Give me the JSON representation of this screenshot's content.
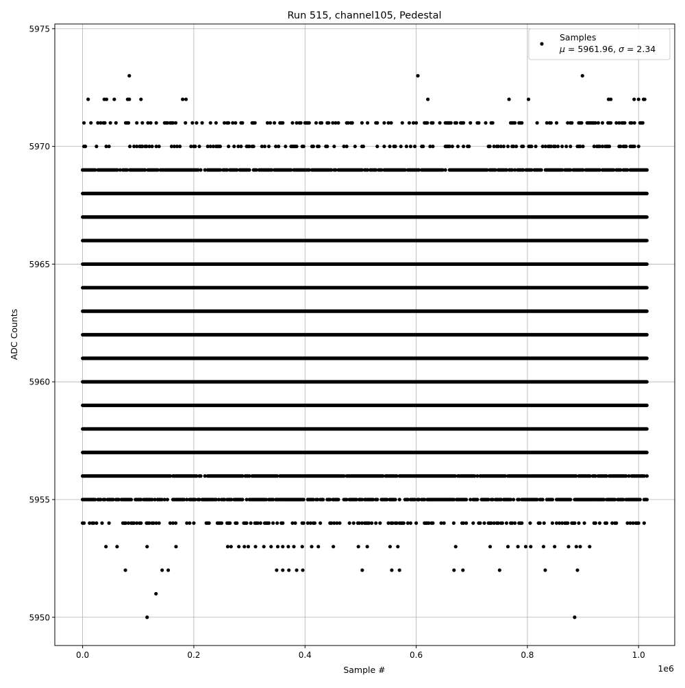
{
  "chart_data": {
    "type": "scatter",
    "title": "Run 515, channel105, Pedestal",
    "xlabel": "Sample #",
    "ylabel": "ADC Counts",
    "x_offset_label": "1e6",
    "xlim": [
      -0.05,
      1.065
    ],
    "ylim": [
      5948.8,
      5975.2
    ],
    "x_unit_scale": 1000000,
    "xticks": [
      0.0,
      0.2,
      0.4,
      0.6,
      0.8,
      1.0
    ],
    "xtick_labels": [
      "0.0",
      "0.2",
      "0.4",
      "0.6",
      "0.8",
      "1.0"
    ],
    "yticks": [
      5950,
      5955,
      5960,
      5965,
      5970,
      5975
    ],
    "ytick_labels": [
      "5950",
      "5955",
      "5960",
      "5965",
      "5970",
      "5975"
    ],
    "grid": true,
    "marker_color": "#000000",
    "grid_color": "#b0b0b0",
    "legend": {
      "placement": "top-right",
      "entries": [
        {
          "label": "Samples",
          "stats": {
            "mu_label": "μ",
            "mu": "5961.96",
            "sigma_label": "σ",
            "sigma": "2.34"
          }
        }
      ]
    },
    "sample_range": [
      0,
      1.015
    ],
    "levels": [
      {
        "adc": 5971,
        "fill_fraction": 0.35
      },
      {
        "adc": 5970,
        "fill_fraction": 0.35
      },
      {
        "adc": 5969,
        "fill_fraction": 0.9
      },
      {
        "adc": 5968,
        "fill_fraction": 1.0
      },
      {
        "adc": 5967,
        "fill_fraction": 1.0
      },
      {
        "adc": 5966,
        "fill_fraction": 1.0
      },
      {
        "adc": 5965,
        "fill_fraction": 1.0
      },
      {
        "adc": 5964,
        "fill_fraction": 1.0
      },
      {
        "adc": 5963,
        "fill_fraction": 1.0
      },
      {
        "adc": 5962,
        "fill_fraction": 1.0
      },
      {
        "adc": 5961,
        "fill_fraction": 1.0
      },
      {
        "adc": 5960,
        "fill_fraction": 1.0
      },
      {
        "adc": 5959,
        "fill_fraction": 1.0
      },
      {
        "adc": 5958,
        "fill_fraction": 1.0
      },
      {
        "adc": 5957,
        "fill_fraction": 1.0
      },
      {
        "adc": 5956,
        "fill_fraction": 0.95
      },
      {
        "adc": 5955,
        "fill_fraction": 0.8
      },
      {
        "adc": 5954,
        "fill_fraction": 0.4
      }
    ],
    "outliers": [
      {
        "adc": 5973,
        "x": [
          0.084,
          0.603,
          0.899
        ]
      },
      {
        "adc": 5972,
        "x": [
          0.01,
          0.039,
          0.043,
          0.057,
          0.081,
          0.084,
          0.105,
          0.18,
          0.186,
          0.621,
          0.767,
          0.802,
          0.946,
          0.95,
          0.992,
          1.0,
          1.009,
          1.011
        ]
      },
      {
        "adc": 5953,
        "x": [
          0.042,
          0.062,
          0.116,
          0.168,
          0.261,
          0.267,
          0.281,
          0.291,
          0.298,
          0.311,
          0.326,
          0.339,
          0.351,
          0.36,
          0.37,
          0.38,
          0.395,
          0.412,
          0.424,
          0.451,
          0.496,
          0.512,
          0.553,
          0.567,
          0.671,
          0.733,
          0.765,
          0.783,
          0.797,
          0.806,
          0.829,
          0.849,
          0.874,
          0.888,
          0.895,
          0.912
        ]
      },
      {
        "adc": 5952,
        "x": [
          0.077,
          0.143,
          0.154,
          0.349,
          0.36,
          0.371,
          0.385,
          0.396,
          0.503,
          0.556,
          0.57,
          0.668,
          0.684,
          0.75,
          0.832,
          0.89
        ]
      },
      {
        "adc": 5951,
        "x": [
          0.132
        ]
      },
      {
        "adc": 5950,
        "x": [
          0.116,
          0.885
        ]
      }
    ]
  }
}
